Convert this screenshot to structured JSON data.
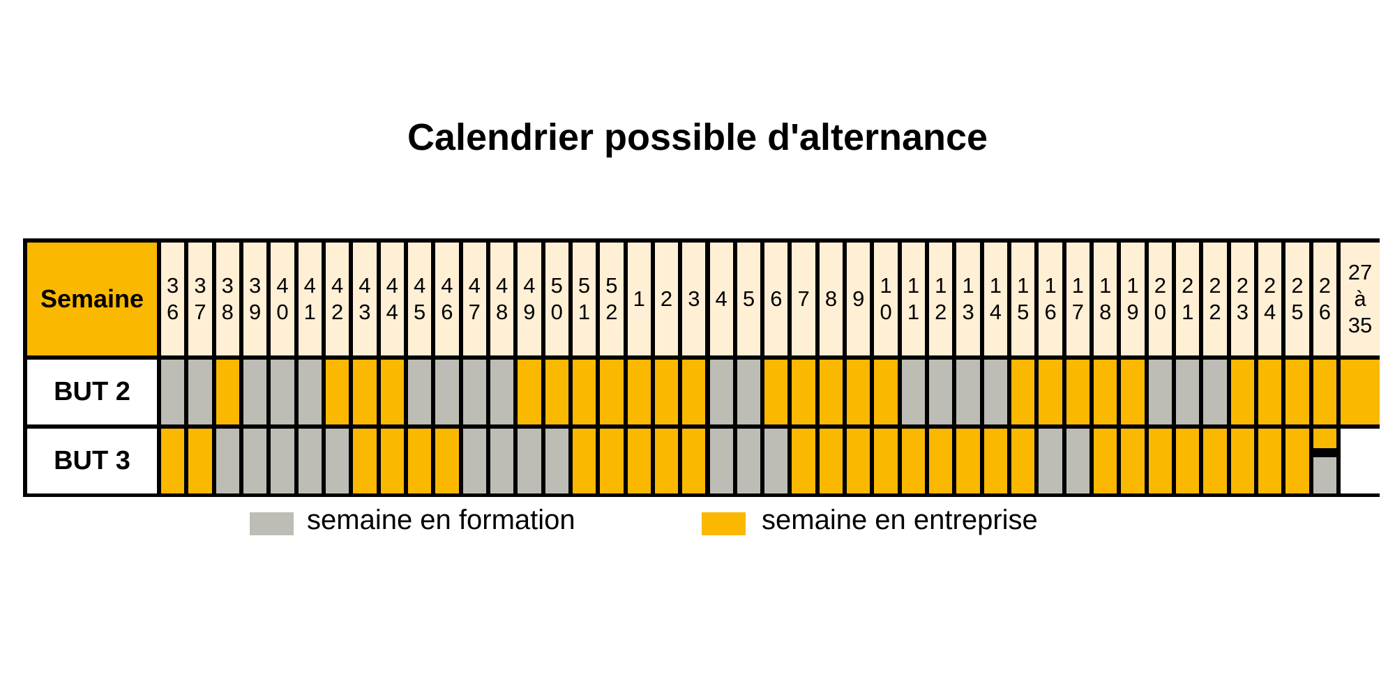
{
  "title": "Calendrier possible d'alternance",
  "colors": {
    "formation": "#BDBDB5",
    "entreprise": "#FBB800",
    "header_fill": "#FFEFD5",
    "empty": "#FFFFFF"
  },
  "header": {
    "label": "Semaine"
  },
  "weeks": [
    "36",
    "37",
    "38",
    "39",
    "40",
    "41",
    "42",
    "43",
    "44",
    "45",
    "46",
    "47",
    "48",
    "49",
    "50",
    "51",
    "52",
    "1",
    "2",
    "3",
    "4",
    "5",
    "6",
    "7",
    "8",
    "9",
    "10",
    "11",
    "12",
    "13",
    "14",
    "15",
    "16",
    "17",
    "18",
    "19",
    "20",
    "21",
    "22",
    "23",
    "24",
    "25",
    "26",
    "27 à 35"
  ],
  "rows": [
    {
      "label": "BUT 2",
      "cells": [
        "formation",
        "formation",
        "entreprise",
        "formation",
        "formation",
        "formation",
        "entreprise",
        "entreprise",
        "entreprise",
        "formation",
        "formation",
        "formation",
        "formation",
        "entreprise",
        "entreprise",
        "entreprise",
        "entreprise",
        "entreprise",
        "entreprise",
        "entreprise",
        "formation",
        "formation",
        "entreprise",
        "entreprise",
        "entreprise",
        "entreprise",
        "entreprise",
        "formation",
        "formation",
        "formation",
        "formation",
        "entreprise",
        "entreprise",
        "entreprise",
        "entreprise",
        "entreprise",
        "formation",
        "formation",
        "formation",
        "entreprise",
        "entreprise",
        "entreprise",
        "entreprise",
        "entreprise"
      ]
    },
    {
      "label": "BUT 3",
      "cells": [
        "entreprise",
        "entreprise",
        "formation",
        "formation",
        "formation",
        "formation",
        "formation",
        "entreprise",
        "entreprise",
        "entreprise",
        "entreprise",
        "formation",
        "formation",
        "formation",
        "formation",
        "entreprise",
        "entreprise",
        "entreprise",
        "entreprise",
        "entreprise",
        "formation",
        "formation",
        "formation",
        "entreprise",
        "entreprise",
        "entreprise",
        "entreprise",
        "entreprise",
        "entreprise",
        "entreprise",
        "entreprise",
        "entreprise",
        "formation",
        "formation",
        "entreprise",
        "entreprise",
        "entreprise",
        "entreprise",
        "entreprise",
        "entreprise",
        "entreprise",
        "entreprise",
        "split",
        "empty"
      ]
    }
  ],
  "legend": [
    {
      "label": "semaine en formation",
      "key": "formation"
    },
    {
      "label": "semaine en entreprise",
      "key": "entreprise"
    }
  ]
}
